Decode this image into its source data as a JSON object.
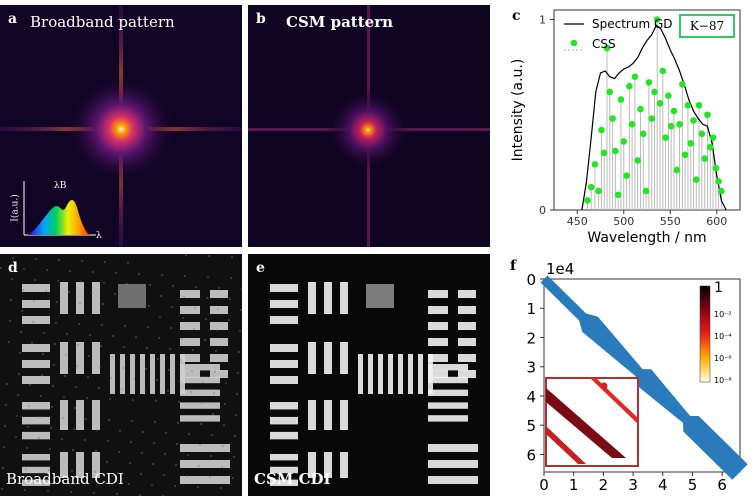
{
  "panels": {
    "a": {
      "label": "a",
      "title": "Broadband pattern",
      "inset": {
        "y_label": "I(a.u.)",
        "peak_label": "λB",
        "x_label": "λ"
      }
    },
    "b": {
      "label": "b",
      "title": "CSM pattern"
    },
    "c": {
      "label": "c",
      "badge": "K−87"
    },
    "d": {
      "label": "d",
      "caption": "Broadband CDI"
    },
    "e": {
      "label": "e",
      "caption": "CSM CDI"
    },
    "f": {
      "label": "f"
    }
  },
  "colors": {
    "spectrum_line": "#000000",
    "css_points": "#22e622",
    "badge_border": "#32c864",
    "matrix_band": "#2a7bbb",
    "inset_border": "#b03030"
  },
  "chart_data": [
    {
      "type": "line",
      "panel": "c",
      "xlabel": "Wavelength / nm",
      "ylabel": "Intensity (a.u.)",
      "xlim": [
        425,
        625
      ],
      "ylim": [
        0,
        1.05
      ],
      "xticks": [
        450,
        500,
        550,
        600
      ],
      "yticks": [
        0,
        1
      ],
      "legend": [
        "Spectrum GD",
        "CSS"
      ],
      "legend_position": "top-left",
      "series": [
        {
          "name": "Spectrum GD",
          "style": "line",
          "x": [
            455,
            460,
            465,
            470,
            475,
            480,
            485,
            490,
            495,
            500,
            505,
            510,
            515,
            520,
            525,
            530,
            535,
            540,
            545,
            550,
            555,
            560,
            565,
            570,
            575,
            580,
            585,
            590,
            595,
            600,
            605,
            610
          ],
          "y": [
            0,
            0.15,
            0.38,
            0.62,
            0.72,
            0.73,
            0.7,
            0.69,
            0.72,
            0.74,
            0.75,
            0.77,
            0.8,
            0.85,
            0.89,
            0.92,
            0.97,
            0.95,
            0.9,
            0.84,
            0.79,
            0.73,
            0.66,
            0.58,
            0.52,
            0.48,
            0.45,
            0.44,
            0.35,
            0.18,
            0.05,
            0
          ]
        },
        {
          "name": "CSS",
          "style": "scatter+stem",
          "x": [
            461,
            465,
            469,
            473,
            476,
            479,
            482,
            485,
            488,
            491,
            494,
            497,
            500,
            503,
            506,
            509,
            512,
            515,
            518,
            521,
            524,
            527,
            530,
            533,
            536,
            539,
            542,
            545,
            548,
            551,
            554,
            557,
            560,
            563,
            566,
            569,
            572,
            575,
            578,
            581,
            584,
            587,
            590,
            593,
            596,
            599,
            602,
            605
          ],
          "y": [
            0.05,
            0.12,
            0.24,
            0.1,
            0.42,
            0.3,
            0.85,
            0.62,
            0.48,
            0.31,
            0.08,
            0.58,
            0.36,
            0.18,
            0.65,
            0.45,
            0.7,
            0.26,
            0.53,
            0.4,
            0.1,
            0.67,
            0.48,
            0.62,
            1.0,
            0.56,
            0.73,
            0.38,
            0.6,
            0.44,
            0.52,
            0.21,
            0.45,
            0.66,
            0.29,
            0.55,
            0.35,
            0.47,
            0.16,
            0.55,
            0.4,
            0.27,
            0.5,
            0.33,
            0.38,
            0.22,
            0.15,
            0.1
          ]
        }
      ]
    },
    {
      "type": "heatmap",
      "panel": "f",
      "multiplier": "1e4",
      "xticks": [
        0,
        1,
        2,
        3,
        4,
        5,
        6
      ],
      "yticks": [
        0,
        1,
        2,
        3,
        4,
        5,
        6
      ],
      "xlim": [
        0,
        6.6
      ],
      "ylim": [
        0,
        6.6
      ],
      "colorbar": {
        "top_label": "1",
        "ticks": [
          "10⁻²",
          "10⁻⁴",
          "10⁻⁶",
          "10⁻⁸"
        ]
      }
    }
  ]
}
